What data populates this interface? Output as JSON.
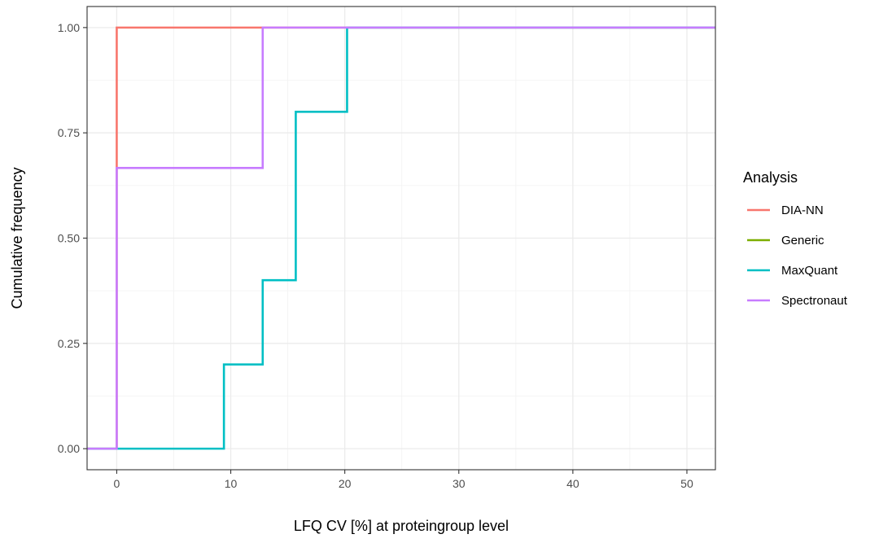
{
  "chart_data": {
    "type": "line",
    "step": true,
    "title": "",
    "xlabel": "LFQ CV [%] at proteingroup level",
    "ylabel": "Cumulative frequency",
    "xlim": [
      -2.6,
      52.5
    ],
    "ylim": [
      -0.05,
      1.05
    ],
    "x_ticks": [
      0,
      10,
      20,
      30,
      40,
      50
    ],
    "x_tick_labels": [
      "0",
      "10",
      "20",
      "30",
      "40",
      "50"
    ],
    "y_ticks": [
      0,
      0.25,
      0.5,
      0.75,
      1.0
    ],
    "y_tick_labels": [
      "0.00",
      "0.25",
      "0.50",
      "0.75",
      "1.00"
    ],
    "grid": true,
    "legend": {
      "title": "Analysis",
      "position": "right"
    },
    "series": [
      {
        "name": "DIA-NN",
        "color": "#F8766D",
        "x": [
          -2.6,
          0,
          52.5
        ],
        "y": [
          0,
          1,
          1
        ]
      },
      {
        "name": "Generic",
        "color": "#7CAE00",
        "x": [],
        "y": []
      },
      {
        "name": "MaxQuant",
        "color": "#00BFC4",
        "x": [
          -2.6,
          9.4,
          12.8,
          15.7,
          20.2,
          52.5
        ],
        "y": [
          0,
          0.2,
          0.4,
          0.8,
          1.0,
          1.0
        ]
      },
      {
        "name": "Spectronaut",
        "color": "#C77CFF",
        "x": [
          -2.6,
          0,
          12.8,
          52.5
        ],
        "y": [
          0,
          0.6667,
          1.0,
          1.0
        ]
      }
    ]
  }
}
